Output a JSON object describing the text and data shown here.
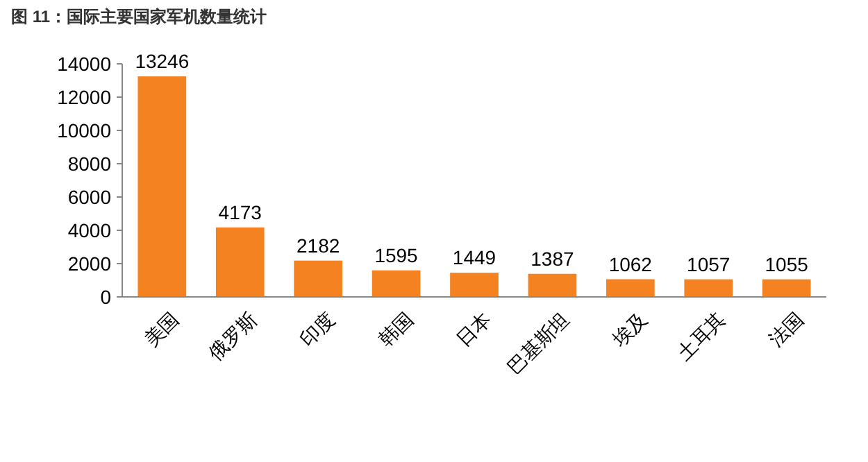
{
  "chart_data": {
    "type": "bar",
    "title": "图 11：国际主要国家军机数量统计",
    "categories": [
      "美国",
      "俄罗斯",
      "印度",
      "韩国",
      "日本",
      "巴基斯坦",
      "埃及",
      "土耳其",
      "法国"
    ],
    "values": [
      13246,
      4173,
      2182,
      1595,
      1449,
      1387,
      1062,
      1057,
      1055
    ],
    "color": "#f58220",
    "ylim": [
      0,
      14000
    ],
    "yticks": [
      0,
      2000,
      4000,
      6000,
      8000,
      10000,
      12000,
      14000
    ],
    "data_labels": true
  }
}
